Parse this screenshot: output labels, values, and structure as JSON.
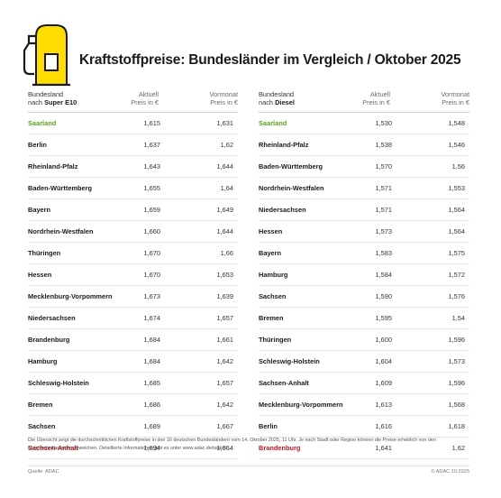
{
  "title": "Kraftstoffpreise: Bundesländer im Vergleich / Oktober 2025",
  "colors": {
    "pump_yellow": "#ffdd00",
    "pump_outline": "#1a1a1a",
    "best": "#5ba31b",
    "worst": "#c8121d"
  },
  "icon": "fuel-pump-icon",
  "left": {
    "header": {
      "col1_line1": "Bundesland",
      "col1_line2_prefix": "nach ",
      "col1_line2_bold": "Super E10",
      "col2_line1": "Aktuell",
      "col2_line2": "Preis in €",
      "col3_line1": "Vormonat",
      "col3_line2": "Preis in €"
    },
    "rows": [
      {
        "land": "Saarland",
        "aktuell": "1,615",
        "vormonat": "1,631",
        "status": "best"
      },
      {
        "land": "Berlin",
        "aktuell": "1,637",
        "vormonat": "1,62",
        "status": ""
      },
      {
        "land": "Rheinland-Pfalz",
        "aktuell": "1,643",
        "vormonat": "1,644",
        "status": ""
      },
      {
        "land": "Baden-Württemberg",
        "aktuell": "1,655",
        "vormonat": "1,64",
        "status": ""
      },
      {
        "land": "Bayern",
        "aktuell": "1,659",
        "vormonat": "1,649",
        "status": ""
      },
      {
        "land": "Nordrhein-Westfalen",
        "aktuell": "1,660",
        "vormonat": "1,644",
        "status": ""
      },
      {
        "land": "Thüringen",
        "aktuell": "1,670",
        "vormonat": "1,66",
        "status": ""
      },
      {
        "land": "Hessen",
        "aktuell": "1,670",
        "vormonat": "1,653",
        "status": ""
      },
      {
        "land": "Mecklenburg-Vorpommern",
        "aktuell": "1,673",
        "vormonat": "1,639",
        "status": ""
      },
      {
        "land": "Niedersachsen",
        "aktuell": "1,674",
        "vormonat": "1,657",
        "status": ""
      },
      {
        "land": "Brandenburg",
        "aktuell": "1,684",
        "vormonat": "1,661",
        "status": ""
      },
      {
        "land": "Hamburg",
        "aktuell": "1,684",
        "vormonat": "1,642",
        "status": ""
      },
      {
        "land": "Schleswig-Holstein",
        "aktuell": "1,685",
        "vormonat": "1,657",
        "status": ""
      },
      {
        "land": "Bremen",
        "aktuell": "1,686",
        "vormonat": "1,642",
        "status": ""
      },
      {
        "land": "Sachsen",
        "aktuell": "1,689",
        "vormonat": "1,667",
        "status": ""
      },
      {
        "land": "Sachsen-Anhalt",
        "aktuell": "1,694",
        "vormonat": "1,664",
        "status": "worst"
      }
    ]
  },
  "right": {
    "header": {
      "col1_line1": "Bundesland",
      "col1_line2_prefix": "nach ",
      "col1_line2_bold": "Diesel",
      "col2_line1": "Aktuell",
      "col2_line2": "Preis in €",
      "col3_line1": "Vormonat",
      "col3_line2": "Preis in €"
    },
    "rows": [
      {
        "land": "Saarland",
        "aktuell": "1,530",
        "vormonat": "1,548",
        "status": "best"
      },
      {
        "land": "Rheinland-Pfalz",
        "aktuell": "1,538",
        "vormonat": "1,546",
        "status": ""
      },
      {
        "land": "Baden-Württemberg",
        "aktuell": "1,570",
        "vormonat": "1,56",
        "status": ""
      },
      {
        "land": "Nordrhein-Westfalen",
        "aktuell": "1,571",
        "vormonat": "1,553",
        "status": ""
      },
      {
        "land": "Niedersachsen",
        "aktuell": "1,571",
        "vormonat": "1,564",
        "status": ""
      },
      {
        "land": "Hessen",
        "aktuell": "1,573",
        "vormonat": "1,564",
        "status": ""
      },
      {
        "land": "Bayern",
        "aktuell": "1,583",
        "vormonat": "1,575",
        "status": ""
      },
      {
        "land": "Hamburg",
        "aktuell": "1,584",
        "vormonat": "1,572",
        "status": ""
      },
      {
        "land": "Sachsen",
        "aktuell": "1,590",
        "vormonat": "1,576",
        "status": ""
      },
      {
        "land": "Bremen",
        "aktuell": "1,595",
        "vormonat": "1,54",
        "status": ""
      },
      {
        "land": "Thüringen",
        "aktuell": "1,600",
        "vormonat": "1,596",
        "status": ""
      },
      {
        "land": "Schleswig-Holstein",
        "aktuell": "1,604",
        "vormonat": "1,573",
        "status": ""
      },
      {
        "land": "Sachsen-Anhalt",
        "aktuell": "1,609",
        "vormonat": "1,596",
        "status": ""
      },
      {
        "land": "Mecklenburg-Vorpommern",
        "aktuell": "1,613",
        "vormonat": "1,568",
        "status": ""
      },
      {
        "land": "Berlin",
        "aktuell": "1,616",
        "vormonat": "1,618",
        "status": ""
      },
      {
        "land": "Brandenburg",
        "aktuell": "1,641",
        "vormonat": "1,62",
        "status": "worst"
      }
    ]
  },
  "footnote": "Die Übersicht zeigt die durchschnittlichen Kraftstoffpreise in den 16 deutschen Bundesländern vom 14. Oktober 2025, 11 Uhr. Je nach Stadt oder Region können die Preise erheblich von den Durchschnittswerten abweichen. Detaillierte Informationen gibt es unter www.adac.de/tanken.",
  "source": "Quelle: ADAC",
  "copyright": "© ADAC 10.2025"
}
